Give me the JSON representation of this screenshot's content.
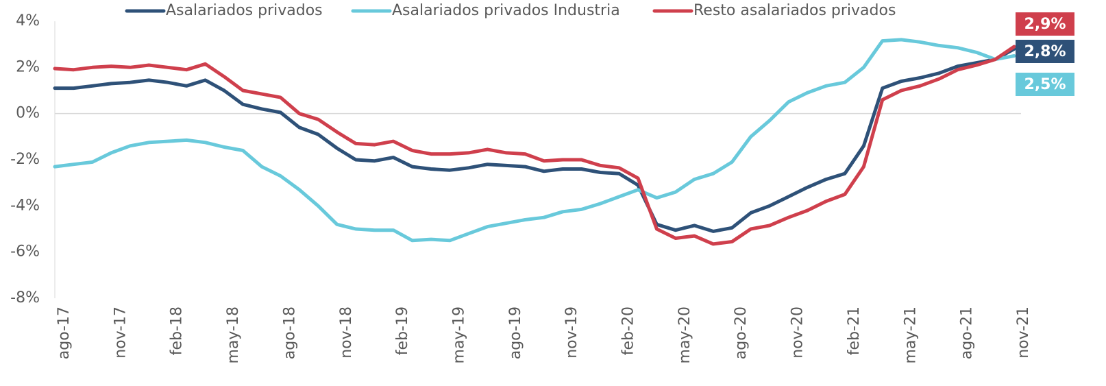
{
  "chart_data": {
    "type": "line",
    "categories": [
      "ago-17",
      null,
      null,
      "nov-17",
      null,
      null,
      "feb-18",
      null,
      null,
      "may-18",
      null,
      null,
      "ago-18",
      null,
      null,
      "nov-18",
      null,
      null,
      "feb-19",
      null,
      null,
      "may-19",
      null,
      null,
      "ago-19",
      null,
      null,
      "nov-19",
      null,
      null,
      "feb-20",
      null,
      null,
      "may-20",
      null,
      null,
      "ago-20",
      null,
      null,
      "nov-20",
      null,
      null,
      "feb-21",
      null,
      null,
      "may-21",
      null,
      null,
      "ago-21",
      null,
      null,
      "nov-21"
    ],
    "series": [
      {
        "name": "Asalariados privados",
        "color": "#2e5178",
        "values": [
          1.1,
          1.1,
          1.2,
          1.3,
          1.35,
          1.45,
          1.35,
          1.2,
          1.45,
          1.0,
          0.4,
          0.2,
          0.05,
          -0.6,
          -0.9,
          -1.5,
          -2.0,
          -2.05,
          -1.9,
          -2.3,
          -2.4,
          -2.45,
          -2.35,
          -2.2,
          -2.25,
          -2.3,
          -2.5,
          -2.4,
          -2.4,
          -2.55,
          -2.6,
          -3.1,
          -4.8,
          -5.05,
          -4.85,
          -5.1,
          -4.95,
          -4.3,
          -4.0,
          -3.6,
          -3.2,
          -2.85,
          -2.6,
          -1.4,
          1.1,
          1.4,
          1.55,
          1.75,
          2.05,
          2.2,
          2.35,
          2.8
        ],
        "value_labels": [
          null,
          null,
          null,
          null,
          null,
          null,
          null,
          null,
          null,
          null,
          null,
          null,
          null,
          null,
          null,
          null,
          null,
          null,
          null,
          null,
          null,
          null,
          null,
          null,
          null,
          null,
          null,
          null,
          null,
          null,
          null,
          null,
          null,
          null,
          null,
          null,
          null,
          null,
          null,
          null,
          null,
          null,
          null,
          null,
          null,
          null,
          null,
          null,
          null,
          null,
          null,
          "2,8%"
        ]
      },
      {
        "name": "Asalariados privados Industria",
        "color": "#68c9db",
        "values": [
          -2.3,
          -2.2,
          -2.1,
          -1.7,
          -1.4,
          -1.25,
          -1.2,
          -1.15,
          -1.25,
          -1.45,
          -1.6,
          -2.3,
          -2.7,
          -3.3,
          -4.0,
          -4.8,
          -5.0,
          -5.05,
          -5.05,
          -5.5,
          -5.45,
          -5.5,
          -5.2,
          -4.9,
          -4.75,
          -4.6,
          -4.5,
          -4.25,
          -4.15,
          -3.9,
          -3.6,
          -3.3,
          -3.65,
          -3.4,
          -2.85,
          -2.6,
          -2.1,
          -1.0,
          -0.3,
          0.5,
          0.9,
          1.2,
          1.35,
          2.0,
          3.15,
          3.2,
          3.1,
          2.95,
          2.85,
          2.65,
          2.35,
          2.5
        ],
        "value_labels": [
          null,
          null,
          null,
          null,
          null,
          null,
          null,
          null,
          null,
          null,
          null,
          null,
          null,
          null,
          null,
          null,
          null,
          null,
          null,
          null,
          null,
          null,
          null,
          null,
          null,
          null,
          null,
          null,
          null,
          null,
          null,
          null,
          null,
          null,
          null,
          null,
          null,
          null,
          null,
          null,
          null,
          null,
          null,
          null,
          null,
          null,
          null,
          null,
          null,
          null,
          null,
          "2,5%"
        ]
      },
      {
        "name": "Resto asalariados privados",
        "color": "#cf3f4c",
        "values": [
          1.95,
          1.9,
          2.0,
          2.05,
          2.0,
          2.1,
          2.0,
          1.9,
          2.15,
          1.6,
          1.0,
          0.85,
          0.7,
          0.0,
          -0.25,
          -0.8,
          -1.3,
          -1.35,
          -1.2,
          -1.6,
          -1.75,
          -1.75,
          -1.7,
          -1.55,
          -1.7,
          -1.75,
          -2.05,
          -2.0,
          -2.0,
          -2.25,
          -2.35,
          -2.8,
          -5.0,
          -5.4,
          -5.3,
          -5.65,
          -5.55,
          -5.0,
          -4.85,
          -4.5,
          -4.2,
          -3.8,
          -3.5,
          -2.3,
          0.6,
          1.0,
          1.2,
          1.5,
          1.9,
          2.1,
          2.35,
          2.9
        ],
        "value_labels": [
          null,
          null,
          null,
          null,
          null,
          null,
          null,
          null,
          null,
          null,
          null,
          null,
          null,
          null,
          null,
          null,
          null,
          null,
          null,
          null,
          null,
          null,
          null,
          null,
          null,
          null,
          null,
          null,
          null,
          null,
          null,
          null,
          null,
          null,
          null,
          null,
          null,
          null,
          null,
          null,
          null,
          null,
          null,
          null,
          null,
          null,
          null,
          null,
          null,
          null,
          null,
          "2,9%"
        ]
      }
    ],
    "ylim": [
      -8,
      4
    ],
    "yticks": [
      {
        "value": 4,
        "label": "4%"
      },
      {
        "value": 2,
        "label": "2%"
      },
      {
        "value": 0,
        "label": "0%"
      },
      {
        "value": -2,
        "label": "-2%"
      },
      {
        "value": -4,
        "label": "-4%"
      },
      {
        "value": -6,
        "label": "-6%"
      },
      {
        "value": -8,
        "label": "-8%"
      }
    ],
    "legend": "top"
  }
}
